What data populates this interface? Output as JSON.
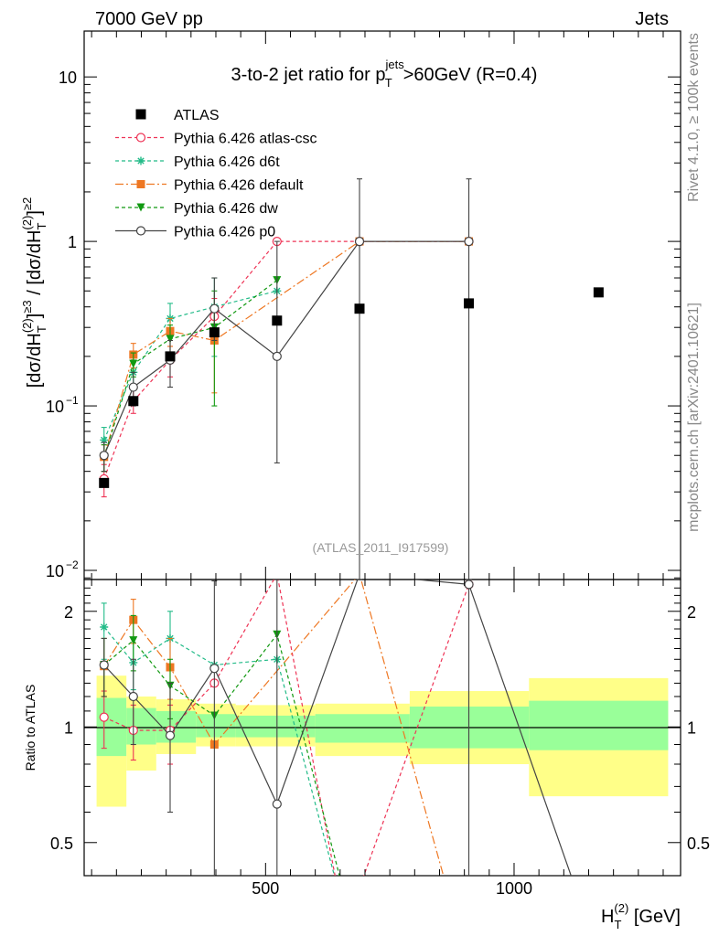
{
  "header": {
    "left": "7000 GeV pp",
    "right": "Jets"
  },
  "side_labels": {
    "rivet": "Rivet 4.1.0, ≥ 100k events",
    "mcplots": "mcplots.cern.ch [arXiv:2401.10621]"
  },
  "chart_data": {
    "type": "scatter",
    "title": {
      "prefix": "3-to-2 jet ratio for p",
      "sup": "jets",
      "sub": "T",
      "suffix": ">60GeV (R=0.4)"
    },
    "analysis_label": "(ATLAS_2011_I917599)",
    "ylabel_main": "[dσ/dH_T^(2)]^≥3 / [dσ/dH_T^(2)]^≥2",
    "ylabel_ratio": "Ratio to ATLAS",
    "xlabel": "H_T^(2) [GeV]",
    "xlim": [
      135,
      1335
    ],
    "ylim_main": [
      0.0088,
      19
    ],
    "ylim_ratio": [
      0.41,
      2.42
    ],
    "x_ticks": [
      {
        "value": 500,
        "label": "500"
      },
      {
        "value": 1000,
        "label": "1000"
      }
    ],
    "y_ticks_main": [
      {
        "value": 0.01,
        "base": "10",
        "exp": "−2"
      },
      {
        "value": 0.1,
        "base": "10",
        "exp": "−1"
      },
      {
        "value": 1,
        "base": "1",
        "exp": ""
      },
      {
        "value": 10,
        "base": "10",
        "exp": ""
      }
    ],
    "y_ticks_ratio": [
      {
        "value": 0.5,
        "label": "0.5"
      },
      {
        "value": 1,
        "label": "1"
      },
      {
        "value": 2,
        "label": "2"
      }
    ],
    "ref_band": {
      "edges": [
        160,
        220,
        280,
        360,
        440,
        600,
        790,
        1030,
        1310
      ],
      "inner_lo": [
        0.84,
        0.9,
        0.91,
        0.94,
        0.94,
        0.91,
        0.88,
        0.87
      ],
      "inner_hi": [
        1.19,
        1.12,
        1.1,
        1.08,
        1.07,
        1.08,
        1.13,
        1.17
      ],
      "outer_lo": [
        0.62,
        0.77,
        0.85,
        0.89,
        0.89,
        0.84,
        0.8,
        0.66
      ],
      "outer_hi": [
        1.36,
        1.2,
        1.18,
        1.15,
        1.14,
        1.15,
        1.24,
        1.34
      ]
    },
    "data": {
      "name": "ATLAS",
      "x": [
        175,
        234,
        308,
        397,
        523,
        689,
        909,
        1170
      ],
      "y": [
        0.034,
        0.107,
        0.2,
        0.28,
        0.33,
        0.39,
        0.42,
        0.49
      ]
    },
    "series": [
      {
        "name": "Pythia 6.426 atlas-csc",
        "color": "#ee3355",
        "dash": "4,3",
        "marker": "open-circle",
        "x": [
          175,
          234,
          308,
          397,
          523,
          689,
          909
        ],
        "y": [
          0.036,
          0.107,
          0.19,
          0.35,
          1.0,
          1.0,
          1.0
        ],
        "err_lo": [
          0.028,
          0.09,
          0.15,
          0.27,
          null,
          null,
          null
        ],
        "err_hi": [
          0.044,
          0.13,
          0.23,
          0.45,
          null,
          null,
          null
        ],
        "ratio_x": [
          175,
          234,
          308,
          397,
          523,
          660,
          909
        ],
        "ratio_y": [
          1.06,
          0.98,
          0.98,
          1.3,
          2.5,
          0.3,
          2.35
        ],
        "ratio_err_lo": [
          0.88,
          0.82,
          0.8,
          null,
          null,
          null,
          null
        ],
        "ratio_err_hi": [
          1.24,
          1.14,
          1.14,
          null,
          null,
          null,
          null
        ]
      },
      {
        "name": "Pythia 6.426 d6t",
        "color": "#22bb88",
        "dash": "4,3",
        "marker": "star",
        "x": [
          175,
          234,
          308,
          397,
          523
        ],
        "y": [
          0.062,
          0.16,
          0.34,
          0.4,
          0.5
        ],
        "err_lo": [
          0.05,
          0.13,
          0.27,
          0.2,
          null
        ],
        "err_hi": [
          0.074,
          0.19,
          0.42,
          0.6,
          null
        ],
        "ratio_x": [
          175,
          234,
          308,
          397,
          523,
          650
        ],
        "ratio_y": [
          1.82,
          1.47,
          1.7,
          1.45,
          1.5,
          0.36
        ],
        "ratio_err_lo": [
          1.5,
          1.25,
          1.4,
          null,
          null,
          null
        ],
        "ratio_err_hi": [
          2.1,
          1.7,
          2.0,
          null,
          null,
          null
        ]
      },
      {
        "name": "Pythia 6.426 default",
        "color": "#ee7722",
        "dash": "9,3,2,3",
        "marker": "square",
        "x": [
          175,
          234,
          308,
          397,
          689,
          909
        ],
        "y": [
          0.049,
          0.205,
          0.285,
          0.25,
          1.0,
          1.0
        ],
        "err_lo": [
          0.04,
          0.17,
          0.23,
          0.12,
          null,
          null
        ],
        "err_hi": [
          0.058,
          0.24,
          0.34,
          0.38,
          null,
          null
        ],
        "ratio_x": [
          175,
          234,
          308,
          397,
          689,
          870
        ],
        "ratio_y": [
          1.44,
          1.9,
          1.43,
          0.9,
          2.5,
          0.36
        ],
        "ratio_err_lo": [
          1.2,
          1.65,
          1.18,
          null,
          null,
          null
        ],
        "ratio_err_hi": [
          1.7,
          2.15,
          1.7,
          null,
          null,
          null
        ]
      },
      {
        "name": "Pythia 6.426 dw",
        "color": "#119911",
        "dash": "4,3",
        "marker": "triangle-down",
        "x": [
          175,
          234,
          308,
          397,
          523
        ],
        "y": [
          0.049,
          0.18,
          0.255,
          0.3,
          0.58
        ],
        "err_lo": [
          0.04,
          0.15,
          0.2,
          0.1,
          null
        ],
        "err_hi": [
          0.058,
          0.21,
          0.31,
          0.5,
          null
        ],
        "ratio_x": [
          175,
          234,
          308,
          397,
          523,
          660
        ],
        "ratio_y": [
          1.45,
          1.68,
          1.28,
          1.07,
          1.74,
          0.36
        ],
        "ratio_err_lo": [
          1.2,
          1.4,
          1.05,
          null,
          null,
          null
        ],
        "ratio_err_hi": [
          1.7,
          1.95,
          1.5,
          null,
          null,
          null
        ]
      },
      {
        "name": "Pythia 6.426 p0",
        "color": "#444444",
        "dash": "",
        "marker": "open-circle",
        "x": [
          175,
          234,
          308,
          397,
          523,
          689,
          909
        ],
        "y": [
          0.05,
          0.13,
          0.19,
          0.39,
          0.2,
          1.0,
          1.0
        ],
        "err_lo": [
          0.04,
          0.1,
          0.13,
          0.25,
          0.045,
          null,
          null
        ],
        "err_hi": [
          0.06,
          0.16,
          0.25,
          0.6,
          1.0,
          2.4,
          2.4
        ],
        "ratio_x": [
          175,
          234,
          308,
          397,
          523,
          689,
          909,
          1130
        ],
        "ratio_y": [
          1.45,
          1.2,
          0.95,
          1.42,
          0.63,
          2.5,
          2.35,
          0.36
        ],
        "ratio_err_lo": [
          1.2,
          0.9,
          0.6,
          0.4,
          0.4,
          null,
          0.4,
          null
        ],
        "ratio_err_hi": [
          1.7,
          1.5,
          1.3,
          2.4,
          2.42,
          null,
          2.42,
          null
        ]
      }
    ]
  }
}
